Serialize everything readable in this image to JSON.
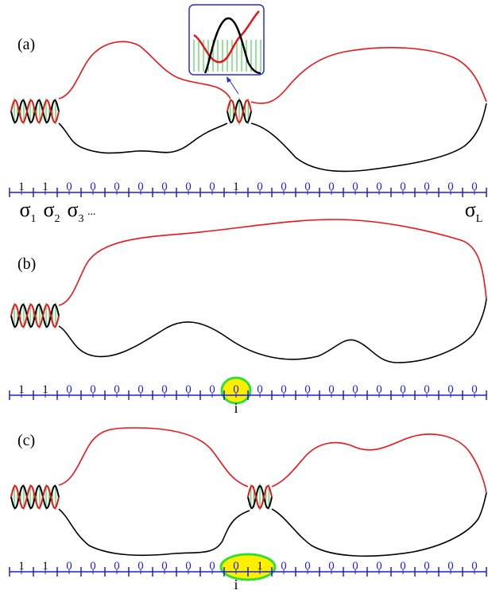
{
  "panels": [
    {
      "label": "(a)",
      "digits": [
        "1",
        "1",
        "0",
        "0",
        "0",
        "0",
        "0",
        "0",
        "0",
        "1",
        "0",
        "0",
        "0",
        "0",
        "0",
        "0",
        "0",
        "0",
        "0",
        "0"
      ],
      "highlight": null,
      "has_inset": true,
      "index_labels": [
        {
          "base": "σ",
          "sub": "1"
        },
        {
          "base": "σ",
          "sub": "2"
        },
        {
          "base": "σ",
          "sub": "3"
        }
      ],
      "ellipsis": "...",
      "last_index": {
        "base": "σ",
        "sub": "L"
      },
      "position_label": null
    },
    {
      "label": "(b)",
      "digits": [
        "1",
        "1",
        "0",
        "0",
        "0",
        "0",
        "0",
        "0",
        "0",
        "0",
        "0",
        "0",
        "0",
        "0",
        "0",
        "0",
        "0",
        "0",
        "0",
        "0"
      ],
      "highlight": {
        "start": 9,
        "count": 1
      },
      "has_inset": false,
      "position_label": "i"
    },
    {
      "label": "(c)",
      "digits": [
        "1",
        "1",
        "0",
        "0",
        "0",
        "0",
        "0",
        "0",
        "0",
        "0",
        "1",
        "0",
        "0",
        "0",
        "0",
        "0",
        "0",
        "0",
        "0",
        "0"
      ],
      "highlight": {
        "start": 9,
        "count": 2
      },
      "has_inset": false,
      "position_label": "i"
    }
  ],
  "colors": {
    "strand_top": "#e8141c",
    "strand_bottom": "#000000",
    "rungs": "#2ec63a",
    "lattice": "#1f1fd6",
    "highlight_fill": "#ffee00",
    "highlight_stroke": "#33dd33",
    "inset_frame": "#2a2ad6"
  }
}
